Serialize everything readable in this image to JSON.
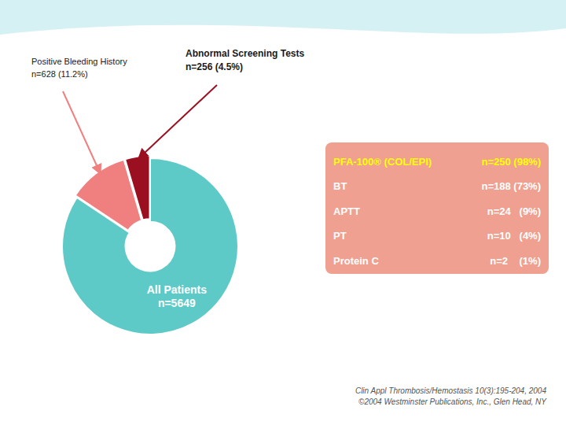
{
  "chart_data": {
    "type": "donut",
    "values": [
      4765,
      628,
      256
    ],
    "colors": [
      "#5ecac8",
      "#f08080",
      "#9b1020"
    ],
    "annotations": [
      "All Patients",
      "n=5649",
      "Positive Bleeding History",
      "n=628 (11.2%)",
      "Abnormal Screening Tests",
      "n=256 (4.5%)"
    ],
    "table": {
      "color": "#f0a090",
      "rows": [
        {
          "label": "PFA-100® (COL/EPI)",
          "value": "n=250 (98%)",
          "color": "#ffff00"
        },
        {
          "label": "BT",
          "value": "n=188 (73%)",
          "color": "#ffffff"
        },
        {
          "label": "APTT",
          "value": "n=24   (9%)",
          "color": "#ffffff"
        },
        {
          "label": "PT",
          "value": "n=10   (4%)",
          "color": "#ffffff"
        },
        {
          "label": "Protein C",
          "value": "n=2    (1%)",
          "color": "#ffffff"
        }
      ]
    },
    "citation": [
      "Clin Appl Thrombosis/Hemostasis 10(3):195-204, 2004",
      "©2004 Westminster Publications, Inc., Glen Head, NY"
    ]
  }
}
